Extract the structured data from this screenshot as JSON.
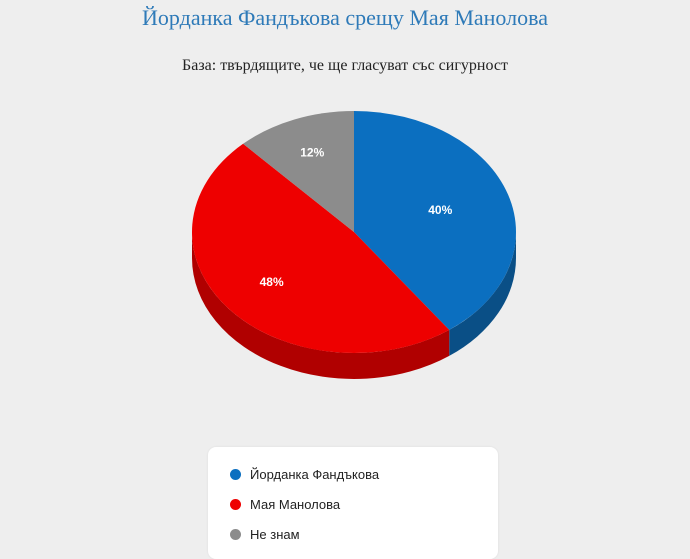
{
  "title": "Йорданка Фандъкова срещу Мая Манолова",
  "subtitle": "База: твърдящите, че ще гласуват със сигурност",
  "chart_data": {
    "type": "pie",
    "title": "Йорданка Фандъкова срещу Мая Манолова",
    "subtitle": "База: твърдящите, че ще гласуват със сигурност",
    "three_d": true,
    "legend_position": "bottom",
    "slices": [
      {
        "name": "Йорданка Фандъкова",
        "value": 40,
        "label": "40%",
        "color": "#0b6fc0",
        "side_color": "#0a4f86"
      },
      {
        "name": "Мая Манолова",
        "value": 48,
        "label": "48%",
        "color": "#ee0000",
        "side_color": "#b00000"
      },
      {
        "name": "Не знам",
        "value": 12,
        "label": "12%",
        "color": "#8c8c8c",
        "side_color": "#606060"
      }
    ]
  }
}
